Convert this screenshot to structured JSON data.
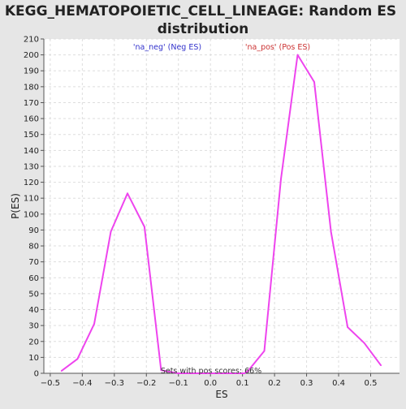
{
  "chart_data": {
    "type": "line",
    "title_lines": [
      "KEGG_HEMATOPOIETIC_CELL_LINEAGE: Random ES",
      "distribution"
    ],
    "xlabel": "ES",
    "ylabel": "P(ES)",
    "xlim": [
      -0.52,
      0.59
    ],
    "ylim": [
      0,
      210
    ],
    "xticks": [
      -0.5,
      -0.4,
      -0.3,
      -0.2,
      -0.1,
      0.0,
      0.1,
      0.2,
      0.3,
      0.4,
      0.5
    ],
    "xtick_labels": [
      "−0.5",
      "−0.4",
      "−0.3",
      "−0.2",
      "−0.1",
      "0.0",
      "0.1",
      "0.2",
      "0.3",
      "0.4",
      "0.5"
    ],
    "yticks": [
      0,
      10,
      20,
      30,
      40,
      50,
      60,
      70,
      80,
      90,
      100,
      110,
      120,
      130,
      140,
      150,
      160,
      170,
      180,
      190,
      200,
      210
    ],
    "grid": true,
    "series": [
      {
        "color": "#ee44ee",
        "x": [
          -0.465,
          -0.415,
          -0.363,
          -0.311,
          -0.259,
          -0.206,
          -0.154,
          -0.102,
          -0.05,
          0.002,
          0.054,
          0.106,
          0.117,
          0.168,
          0.22,
          0.272,
          0.324,
          0.376,
          0.428,
          0.48,
          0.532
        ],
        "y": [
          1.5,
          9,
          31,
          89,
          113,
          92,
          2,
          0,
          0,
          0,
          0,
          0,
          1.5,
          14,
          122,
          200,
          183,
          89,
          29,
          19,
          5
        ]
      }
    ],
    "annotations": {
      "neg": {
        "text": "'na_neg' (Neg ES)",
        "color": "#3333cc"
      },
      "pos": {
        "text": "'na_pos' (Pos ES)",
        "color": "#cc3333"
      },
      "footer": {
        "text": "Sets with pos scores: 66%",
        "color": "#333333"
      }
    }
  }
}
